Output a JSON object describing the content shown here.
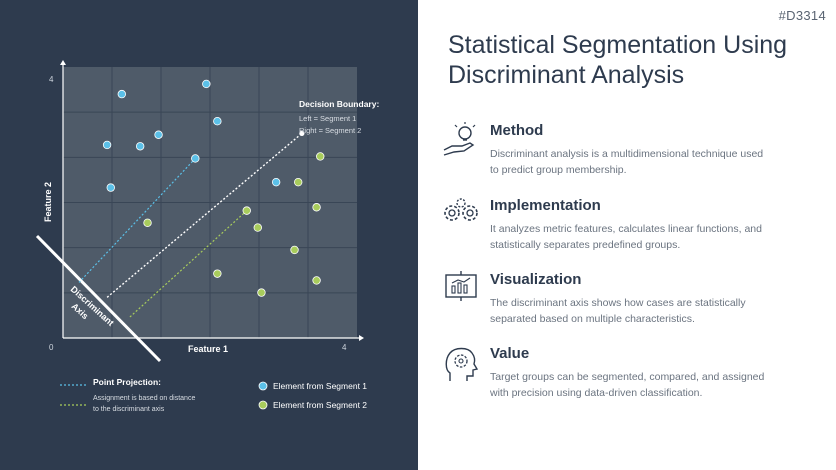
{
  "slide_id": "#D3314",
  "title": "Statistical Segmentation Using Discriminant Analysis",
  "items": [
    {
      "heading": "Method",
      "text": "Discriminant analysis is a multidimensional technique used to predict group membership.",
      "icon": "lightbulb-hand-icon"
    },
    {
      "heading": "Implementation",
      "text": "It analyzes metric features, calculates linear functions, and statistically separates predefined groups.",
      "icon": "gears-icon"
    },
    {
      "heading": "Visualization",
      "text": "The discriminant axis shows how cases are statistically separated based on multiple characteristics.",
      "icon": "presentation-chart-icon"
    },
    {
      "heading": "Value",
      "text": "Target groups can be segmented, compared, and assigned with precision using data-driven classification.",
      "icon": "head-brain-icon"
    }
  ],
  "chart": {
    "x_label": "Feature 1",
    "y_label": "Feature 2",
    "x_min_label": "0",
    "x_max_label": "4",
    "y_max_label": "4",
    "axis_label": "Discriminant Axis",
    "boundary_title": "Decision Boundary:",
    "boundary_left": "Left = Segment 1",
    "boundary_right": "Right = Segment 2",
    "projection_title": "Point Projection:",
    "projection_text_1": "Assignment is based on distance",
    "projection_text_2": "to the discriminant axis",
    "colors": {
      "segment1": "#5bc0e8",
      "segment2": "#a8cc5c",
      "background": "#2e3b4e",
      "plot": "#4f5b69"
    }
  },
  "chart_data": {
    "type": "scatter",
    "xlim": [
      0,
      4
    ],
    "ylim": [
      0,
      4
    ],
    "xlabel": "Feature 1",
    "ylabel": "Feature 2",
    "grid": true,
    "legend_placement": "bottom",
    "series": [
      {
        "name": "Element from Segment 1",
        "color": "#5bc0e8",
        "points": [
          [
            0.8,
            3.6
          ],
          [
            0.6,
            2.85
          ],
          [
            1.05,
            2.83
          ],
          [
            1.3,
            3.0
          ],
          [
            0.65,
            2.22
          ],
          [
            1.95,
            3.75
          ],
          [
            2.1,
            3.2
          ],
          [
            1.8,
            2.65
          ],
          [
            2.9,
            2.3
          ]
        ]
      },
      {
        "name": "Element from Segment 2",
        "color": "#a8cc5c",
        "points": [
          [
            1.15,
            1.7
          ],
          [
            2.5,
            1.88
          ],
          [
            2.65,
            1.63
          ],
          [
            3.2,
            2.3
          ],
          [
            3.5,
            2.68
          ],
          [
            3.45,
            1.93
          ],
          [
            3.15,
            1.3
          ],
          [
            2.1,
            0.95
          ],
          [
            2.7,
            0.67
          ],
          [
            3.45,
            0.85
          ]
        ]
      }
    ],
    "boundary_line": [
      [
        0.6,
        0.6
      ],
      [
        3.25,
        3.02
      ]
    ],
    "projection_lines": [
      {
        "series": "Segment 1",
        "from": [
          1.8,
          2.65
        ],
        "to": [
          0.2,
          0.8
        ]
      },
      {
        "series": "Segment 2",
        "from": [
          2.5,
          1.88
        ],
        "to": [
          0.9,
          0.3
        ]
      }
    ]
  }
}
